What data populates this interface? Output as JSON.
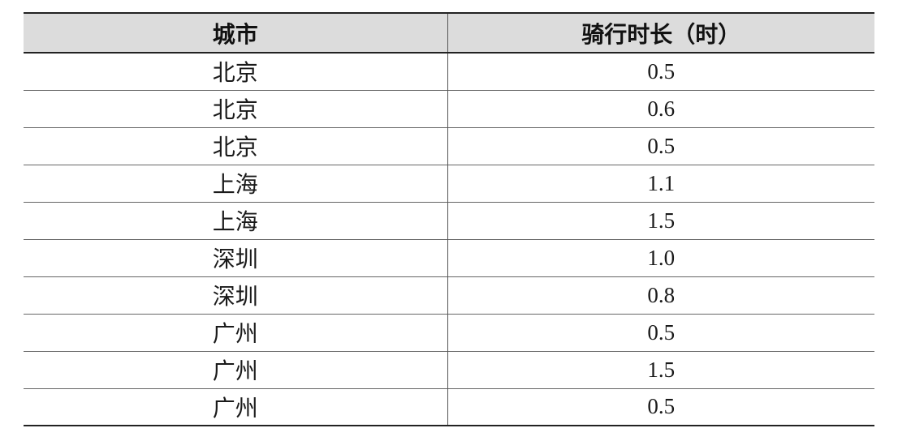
{
  "table": {
    "headers": {
      "city": "城市",
      "duration": "骑行时长（时）"
    },
    "rows": [
      {
        "city": "北京",
        "duration": "0.5"
      },
      {
        "city": "北京",
        "duration": "0.6"
      },
      {
        "city": "北京",
        "duration": "0.5"
      },
      {
        "city": "上海",
        "duration": "1.1"
      },
      {
        "city": "上海",
        "duration": "1.5"
      },
      {
        "city": "深圳",
        "duration": "1.0"
      },
      {
        "city": "深圳",
        "duration": "0.8"
      },
      {
        "city": "广州",
        "duration": "0.5"
      },
      {
        "city": "广州",
        "duration": "1.5"
      },
      {
        "city": "广州",
        "duration": "0.5"
      }
    ]
  }
}
